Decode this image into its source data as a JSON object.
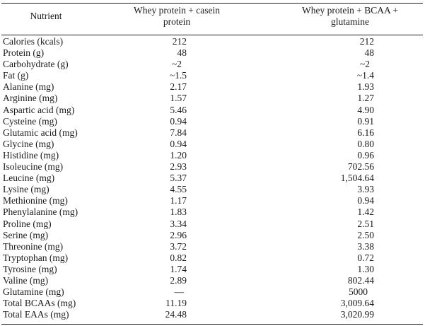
{
  "table": {
    "headers": {
      "nutrient": "Nutrient",
      "col1_line1": "Whey protein + casein",
      "col1_line2": "protein",
      "col2_line1": "Whey protein + BCAA +",
      "col2_line2": "glutamine"
    },
    "rows": [
      {
        "name": "Calories (kcals)",
        "v1": "212",
        "v2": "212"
      },
      {
        "name": "Protein (g)",
        "v1": "48",
        "v2": "48"
      },
      {
        "name": "Carbohydrate (g)",
        "v1": "~2",
        "v2": "~2"
      },
      {
        "name": "Fat (g)",
        "v1": "~1.5",
        "v2": "~1.4"
      },
      {
        "name": "Alanine (mg)",
        "v1": "2.17",
        "v2": "1.93"
      },
      {
        "name": "Arginine (mg)",
        "v1": "1.57",
        "v2": "1.27"
      },
      {
        "name": "Aspartic acid (mg)",
        "v1": "5.46",
        "v2": "4.90"
      },
      {
        "name": "Cysteine (mg)",
        "v1": "0.94",
        "v2": "0.91"
      },
      {
        "name": "Glutamic acid (mg)",
        "v1": "7.84",
        "v2": "6.16"
      },
      {
        "name": "Glycine (mg)",
        "v1": "0.94",
        "v2": "0.80"
      },
      {
        "name": "Histidine (mg)",
        "v1": "1.20",
        "v2": "0.96"
      },
      {
        "name": "Isoleucine (mg)",
        "v1": "2.93",
        "v2": "702.56"
      },
      {
        "name": "Leucine (mg)",
        "v1": "5.37",
        "v2": "1,504.64"
      },
      {
        "name": "Lysine (mg)",
        "v1": "4.55",
        "v2": "3.93"
      },
      {
        "name": "Methionine (mg)",
        "v1": "1.17",
        "v2": "0.94"
      },
      {
        "name": "Phenylalanine (mg)",
        "v1": "1.83",
        "v2": "1.42"
      },
      {
        "name": "Proline (mg)",
        "v1": "3.34",
        "v2": "2.51"
      },
      {
        "name": "Serine (mg)",
        "v1": "2.96",
        "v2": "2.50"
      },
      {
        "name": "Threonine (mg)",
        "v1": "3.72",
        "v2": "3.38"
      },
      {
        "name": "Tryptophan (mg)",
        "v1": "0.82",
        "v2": "0.72"
      },
      {
        "name": "Tyrosine (mg)",
        "v1": "1.74",
        "v2": "1.30"
      },
      {
        "name": "Valine (mg)",
        "v1": "2.89",
        "v2": "802.44"
      },
      {
        "name": "Glutamine (mg)",
        "v1": "—",
        "v2": "5000"
      },
      {
        "name": "Total BCAAs (mg)",
        "v1": "11.19",
        "v2": "3,009.64"
      },
      {
        "name": "Total EAAs (mg)",
        "v1": "24.48",
        "v2": "3,020.99"
      }
    ]
  }
}
